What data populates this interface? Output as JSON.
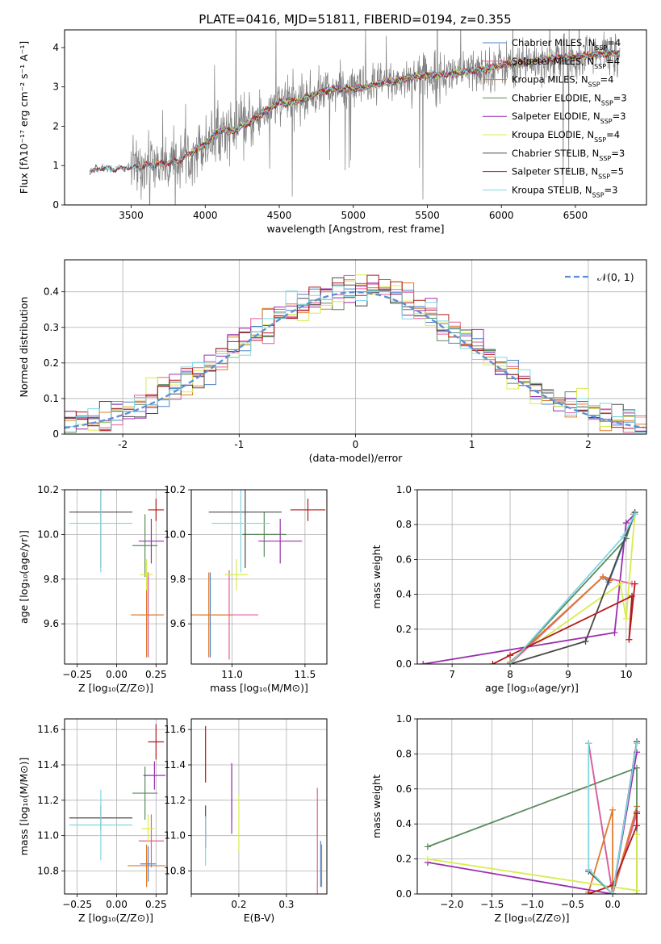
{
  "title": "PLATE=0416, MJD=51811, FIBERID=0194, z=0.355",
  "colors": {
    "Chabrier MILES": "#4f81c7",
    "Salpeter MILES": "#e35e9a",
    "Kroupa MILES": "#e07b2a",
    "Chabrier ELODIE": "#5b8a5e",
    "Salpeter ELODIE": "#9b2fae",
    "Kroupa ELODIE": "#d8ec4c",
    "Chabrier STELIB": "#4a4a4a",
    "Salpeter STELIB": "#b31b1b",
    "Kroupa STELIB": "#7fd6e0",
    "gauss": "#5b8fd6",
    "data": "#7f7f7f"
  },
  "chart_data": [
    {
      "id": "spectrum",
      "type": "line",
      "title": "PLATE=0416, MJD=51811, FIBERID=0194, z=0.355",
      "xlabel": "wavelength [Angstrom, rest frame]",
      "ylabel": "Flux [fλ10⁻¹⁷ erg cm⁻² s⁻¹ A⁻¹]",
      "xlim": [
        3050,
        6980
      ],
      "ylim": [
        0,
        4.45
      ],
      "xticks": [
        3500,
        4000,
        4500,
        5000,
        5500,
        6000,
        6500
      ],
      "yticks": [
        0,
        1,
        2,
        3,
        4
      ],
      "grid": false,
      "legend_position": "upper-right",
      "legend": [
        {
          "label": "Chabrier MILES, N",
          "sub": "SSP",
          "suffix": "=4",
          "key": "Chabrier MILES"
        },
        {
          "label": "Salpeter MILES, N",
          "sub": "SSP",
          "suffix": "=4",
          "key": "Salpeter MILES"
        },
        {
          "label": "Kroupa MILES, N",
          "sub": "SSP",
          "suffix": "=4",
          "key": "Kroupa MILES"
        },
        {
          "label": "Chabrier ELODIE, N",
          "sub": "SSP",
          "suffix": "=3",
          "key": "Chabrier ELODIE"
        },
        {
          "label": "Salpeter ELODIE, N",
          "sub": "SSP",
          "suffix": "=3",
          "key": "Salpeter ELODIE"
        },
        {
          "label": "Kroupa ELODIE, N",
          "sub": "SSP",
          "suffix": "=4",
          "key": "Kroupa ELODIE"
        },
        {
          "label": "Chabrier STELIB, N",
          "sub": "SSP",
          "suffix": "=3",
          "key": "Chabrier STELIB"
        },
        {
          "label": "Salpeter STELIB, N",
          "sub": "SSP",
          "suffix": "=5",
          "key": "Salpeter STELIB"
        },
        {
          "label": "Kroupa STELIB, N",
          "sub": "SSP",
          "suffix": "=3",
          "key": "Kroupa STELIB"
        }
      ],
      "continuum_x": [
        3220,
        3300,
        3400,
        3500,
        3600,
        3700,
        3800,
        3900,
        4000,
        4100,
        4200,
        4300,
        4400,
        4500,
        4600,
        4700,
        4800,
        4900,
        5000,
        5100,
        5200,
        5300,
        5400,
        5500,
        5600,
        5700,
        5800,
        5900,
        6000,
        6100,
        6200,
        6300,
        6400,
        6500,
        6600,
        6700,
        6800
      ],
      "continuum_y": [
        0.85,
        0.95,
        0.9,
        0.95,
        1.0,
        1.05,
        1.1,
        1.3,
        1.55,
        1.9,
        1.9,
        2.1,
        2.35,
        2.6,
        2.6,
        2.75,
        2.9,
        2.95,
        2.95,
        3.0,
        3.1,
        3.15,
        3.25,
        3.3,
        3.3,
        3.35,
        3.4,
        3.45,
        3.55,
        3.6,
        3.65,
        3.7,
        3.75,
        3.75,
        3.8,
        3.85,
        3.85
      ]
    },
    {
      "id": "residuals",
      "type": "line",
      "xlabel": "(data-model)/error",
      "ylabel": "Normed distribution",
      "xlim": [
        -2.5,
        2.5
      ],
      "ylim": [
        0,
        0.49
      ],
      "xticks": [
        -2,
        -1,
        0,
        1,
        2
      ],
      "yticks": [
        0.0,
        0.1,
        0.2,
        0.3,
        0.4
      ],
      "grid": true,
      "legend_position": "upper-right",
      "legend": [
        {
          "label": "𝒩(0, 1)",
          "key": "gauss"
        }
      ],
      "bin_width": 0.1
    },
    {
      "id": "age_vs_Z",
      "type": "scatter",
      "xlabel": "Z [log₁₀(Z/Z⊙)]",
      "ylabel": "age  [log₁₀(age/yr)]",
      "xlim": [
        -0.33,
        0.32
      ],
      "ylim": [
        9.42,
        10.2
      ],
      "xticks": [
        -0.25,
        0.0,
        0.25
      ],
      "xticklabels": [
        "−0.25",
        "0.00",
        "0.25"
      ],
      "yticks": [
        9.6,
        9.8,
        10.0,
        10.2
      ],
      "yticklabels": [
        "9.6",
        "9.8",
        "10.0",
        "10.2"
      ],
      "grid": true,
      "points": [
        {
          "key": "Chabrier MILES",
          "x": 0.2,
          "xerr": 0.05,
          "y": 9.64,
          "yerr": 0.19
        },
        {
          "key": "Salpeter MILES",
          "x": 0.2,
          "xerr": 0.1,
          "y": 9.64,
          "yerr": 0.19
        },
        {
          "key": "Kroupa MILES",
          "x": 0.19,
          "xerr": 0.1,
          "y": 9.64,
          "yerr": 0.19
        },
        {
          "key": "Chabrier ELODIE",
          "x": 0.18,
          "xerr": 0.08,
          "y": 9.95,
          "yerr": 0.14
        },
        {
          "key": "Salpeter ELODIE",
          "x": 0.22,
          "xerr": 0.08,
          "y": 9.97,
          "yerr": 0.1
        },
        {
          "key": "Kroupa ELODIE",
          "x": 0.19,
          "xerr": 0.04,
          "y": 9.82,
          "yerr": 0.07
        },
        {
          "key": "Chabrier STELIB",
          "x": -0.1,
          "xerr": 0.2,
          "y": 10.1,
          "yerr": 0.25
        },
        {
          "key": "Salpeter STELIB",
          "x": 0.25,
          "xerr": 0.05,
          "y": 10.11,
          "yerr": 0.05
        },
        {
          "key": "Kroupa STELIB",
          "x": -0.1,
          "xerr": 0.2,
          "y": 10.05,
          "yerr": 0.22
        }
      ]
    },
    {
      "id": "age_vs_mass",
      "type": "scatter",
      "xlabel": "mass [log₁₀(M/M⊙)]",
      "ylabel": "",
      "xlim": [
        10.72,
        11.65
      ],
      "ylim": [
        9.42,
        10.2
      ],
      "xticks": [
        11.0,
        11.5
      ],
      "xticklabels": [
        "11.0",
        "11.5"
      ],
      "yticks": [
        9.6,
        9.8,
        10.0,
        10.2
      ],
      "yticklabels": [
        "9.6",
        "9.8",
        "10.0",
        "10.2"
      ],
      "grid": true,
      "points": [
        {
          "key": "Chabrier MILES",
          "x": 10.85,
          "xerr": 0.15,
          "y": 9.64,
          "yerr": 0.19
        },
        {
          "key": "Salpeter MILES",
          "x": 10.98,
          "xerr": 0.2,
          "y": 9.64,
          "yerr": 0.2
        },
        {
          "key": "Kroupa MILES",
          "x": 10.84,
          "xerr": 0.15,
          "y": 9.64,
          "yerr": 0.19
        },
        {
          "key": "Chabrier ELODIE",
          "x": 11.22,
          "xerr": 0.15,
          "y": 10.0,
          "yerr": 0.1
        },
        {
          "key": "Salpeter ELODIE",
          "x": 11.33,
          "xerr": 0.15,
          "y": 9.97,
          "yerr": 0.1
        },
        {
          "key": "Kroupa ELODIE",
          "x": 11.03,
          "xerr": 0.08,
          "y": 9.82,
          "yerr": 0.07
        },
        {
          "key": "Chabrier STELIB",
          "x": 11.09,
          "xerr": 0.25,
          "y": 10.1,
          "yerr": 0.25
        },
        {
          "key": "Salpeter STELIB",
          "x": 11.52,
          "xerr": 0.12,
          "y": 10.11,
          "yerr": 0.05
        },
        {
          "key": "Kroupa STELIB",
          "x": 11.06,
          "xerr": 0.2,
          "y": 10.05,
          "yerr": 0.22
        }
      ]
    },
    {
      "id": "weight_vs_age",
      "type": "line",
      "xlabel": "age  [log₁₀(age/yr)]",
      "ylabel": "mass weight",
      "xlim": [
        6.4,
        10.35
      ],
      "ylim": [
        0,
        1.0
      ],
      "xticks": [
        7,
        8,
        9,
        10
      ],
      "yticks": [
        0.0,
        0.2,
        0.4,
        0.6,
        0.8,
        1.0
      ],
      "yticklabels": [
        "0.0",
        "0.2",
        "0.4",
        "0.6",
        "0.8",
        "1.0"
      ],
      "grid": true,
      "series": [
        {
          "key": "Chabrier MILES",
          "x": [
            8.0,
            9.6,
            9.7,
            10.15
          ],
          "y": [
            0.01,
            0.5,
            0.47,
            0.86
          ]
        },
        {
          "key": "Salpeter MILES",
          "x": [
            8.0,
            9.6,
            10.1
          ],
          "y": [
            0.0,
            0.5,
            0.46
          ]
        },
        {
          "key": "Kroupa MILES",
          "x": [
            8.0,
            9.6,
            9.72
          ],
          "y": [
            0.01,
            0.5,
            0.48
          ]
        },
        {
          "key": "Chabrier ELODIE",
          "x": [
            8.0,
            10.0,
            10.13
          ],
          "y": [
            0.0,
            0.72,
            0.86
          ]
        },
        {
          "key": "Salpeter ELODIE",
          "x": [
            6.5,
            9.8,
            10.0,
            10.15
          ],
          "y": [
            0.0,
            0.18,
            0.81,
            0.86
          ]
        },
        {
          "key": "Kroupa ELODIE",
          "x": [
            8.5,
            9.9,
            10.0,
            10.15
          ],
          "y": [
            0.13,
            0.46,
            0.26,
            0.86
          ]
        },
        {
          "key": "Chabrier STELIB",
          "x": [
            8.0,
            9.3,
            10.15
          ],
          "y": [
            0.0,
            0.13,
            0.87
          ]
        },
        {
          "key": "Salpeter STELIB",
          "x": [
            7.7,
            8.0,
            10.1,
            10.05,
            10.15
          ],
          "y": [
            0.0,
            0.05,
            0.39,
            0.14,
            0.46
          ]
        },
        {
          "key": "Kroupa STELIB",
          "x": [
            8.0,
            9.95,
            10.15
          ],
          "y": [
            0.0,
            0.73,
            0.86
          ]
        }
      ]
    },
    {
      "id": "mass_vs_Z",
      "type": "scatter",
      "xlabel": "Z [log₁₀(Z/Z⊙)]",
      "ylabel": "mass [log₁₀(M/M⊙)]",
      "xlim": [
        -0.33,
        0.32
      ],
      "ylim": [
        10.67,
        11.66
      ],
      "xticks": [
        -0.25,
        0.0,
        0.25
      ],
      "xticklabels": [
        "−0.25",
        "0.00",
        "0.25"
      ],
      "yticks": [
        10.8,
        11.0,
        11.2,
        11.4,
        11.6
      ],
      "yticklabels": [
        "10.8",
        "11.0",
        "11.2",
        "11.4",
        "11.6"
      ],
      "grid": true,
      "points": [
        {
          "key": "Chabrier MILES",
          "x": 0.2,
          "xerr": 0.05,
          "y": 10.84,
          "yerr": 0.1
        },
        {
          "key": "Salpeter MILES",
          "x": 0.22,
          "xerr": 0.08,
          "y": 10.97,
          "yerr": 0.15
        },
        {
          "key": "Kroupa MILES",
          "x": 0.19,
          "xerr": 0.12,
          "y": 10.83,
          "yerr": 0.12
        },
        {
          "key": "Chabrier ELODIE",
          "x": 0.18,
          "xerr": 0.08,
          "y": 11.24,
          "yerr": 0.15
        },
        {
          "key": "Salpeter ELODIE",
          "x": 0.24,
          "xerr": 0.07,
          "y": 11.34,
          "yerr": 0.08
        },
        {
          "key": "Kroupa ELODIE",
          "x": 0.2,
          "xerr": 0.04,
          "y": 11.04,
          "yerr": 0.08
        },
        {
          "key": "Chabrier STELIB",
          "x": -0.1,
          "xerr": 0.2,
          "y": 11.1,
          "yerr": 0.07
        },
        {
          "key": "Salpeter STELIB",
          "x": 0.25,
          "xerr": 0.05,
          "y": 11.53,
          "yerr": 0.1
        },
        {
          "key": "Kroupa STELIB",
          "x": -0.1,
          "xerr": 0.2,
          "y": 11.06,
          "yerr": 0.2
        }
      ]
    },
    {
      "id": "mass_vs_ebv",
      "type": "scatter",
      "xlabel": "E(B-V)",
      "ylabel": "",
      "xlim": [
        0.1,
        0.385
      ],
      "ylim": [
        10.67,
        11.66
      ],
      "xticks": [
        0.1,
        0.2,
        0.3
      ],
      "xticklabels": [
        "",
        "0.2",
        "0.3"
      ],
      "yticks": [
        10.8,
        11.0,
        11.2,
        11.4,
        11.6
      ],
      "yticklabels": [
        "10.8",
        "11.0",
        "11.2",
        "11.4",
        "11.6"
      ],
      "grid": true,
      "points": [
        {
          "key": "Chabrier MILES",
          "x": 0.372,
          "xerr": 0,
          "y": 10.84,
          "yerr": 0.13
        },
        {
          "key": "Salpeter MILES",
          "x": 0.365,
          "xerr": 0,
          "y": 10.97,
          "yerr": 0.3
        },
        {
          "key": "Kroupa MILES",
          "x": 0.374,
          "xerr": 0,
          "y": 10.83,
          "yerr": 0.12
        },
        {
          "key": "Chabrier ELODIE",
          "x": 0.185,
          "xerr": 0,
          "y": 11.24,
          "yerr": 0.15
        },
        {
          "key": "Salpeter ELODIE",
          "x": 0.185,
          "xerr": 0,
          "y": 11.21,
          "yerr": 0.2
        },
        {
          "key": "Kroupa ELODIE",
          "x": 0.2,
          "xerr": 0,
          "y": 11.07,
          "yerr": 0.16
        },
        {
          "key": "Chabrier STELIB",
          "x": 0.13,
          "xerr": 0,
          "y": 11.05,
          "yerr": 0.12
        },
        {
          "key": "Salpeter STELIB",
          "x": 0.13,
          "xerr": 0,
          "y": 11.46,
          "yerr": 0.16
        },
        {
          "key": "Kroupa STELIB",
          "x": 0.13,
          "xerr": 0,
          "y": 10.97,
          "yerr": 0.14
        }
      ]
    },
    {
      "id": "weight_vs_Z",
      "type": "line",
      "xlabel": "Z [log₁₀(Z/Z⊙)]",
      "ylabel": "mass weight",
      "xlim": [
        -2.43,
        0.42
      ],
      "ylim": [
        0,
        1.0
      ],
      "xticks": [
        -2.0,
        -1.5,
        -1.0,
        -0.5,
        0.0
      ],
      "xticklabels": [
        "−2.0",
        "−1.5",
        "−1.0",
        "−0.5",
        "0.0"
      ],
      "yticks": [
        0.0,
        0.2,
        0.4,
        0.6,
        0.8,
        1.0
      ],
      "yticklabels": [
        "0.0",
        "0.2",
        "0.4",
        "0.6",
        "0.8",
        "1.0"
      ],
      "grid": true,
      "series": [
        {
          "key": "Chabrier MILES",
          "x": [
            -0.3,
            0.0,
            0.3
          ],
          "y": [
            0.86,
            0.0,
            0.47
          ]
        },
        {
          "key": "Salpeter MILES",
          "x": [
            -0.3,
            0.0,
            0.3
          ],
          "y": [
            0.86,
            0.0,
            0.46
          ]
        },
        {
          "key": "Kroupa MILES",
          "x": [
            -0.3,
            0.0,
            0.0,
            0.3
          ],
          "y": [
            0.01,
            0.48,
            0.0,
            0.5
          ]
        },
        {
          "key": "Chabrier ELODIE",
          "x": [
            -2.3,
            0.3,
            0.3
          ],
          "y": [
            0.27,
            0.72,
            0.0
          ]
        },
        {
          "key": "Salpeter ELODIE",
          "x": [
            -2.3,
            0.0,
            0.3
          ],
          "y": [
            0.18,
            0.0,
            0.81
          ]
        },
        {
          "key": "Kroupa ELODIE",
          "x": [
            -2.3,
            0.3,
            0.3
          ],
          "y": [
            0.2,
            0.02,
            0.34
          ]
        },
        {
          "key": "Chabrier STELIB",
          "x": [
            -0.3,
            0.0,
            0.3
          ],
          "y": [
            0.13,
            0.0,
            0.87
          ]
        },
        {
          "key": "Salpeter STELIB",
          "x": [
            -0.3,
            0.0,
            0.3,
            0.3
          ],
          "y": [
            0.0,
            0.05,
            0.39,
            0.46
          ]
        },
        {
          "key": "Kroupa STELIB",
          "x": [
            -0.3,
            -0.3,
            0.0,
            0.3
          ],
          "y": [
            0.86,
            0.14,
            0.0,
            0.86
          ]
        }
      ]
    }
  ]
}
